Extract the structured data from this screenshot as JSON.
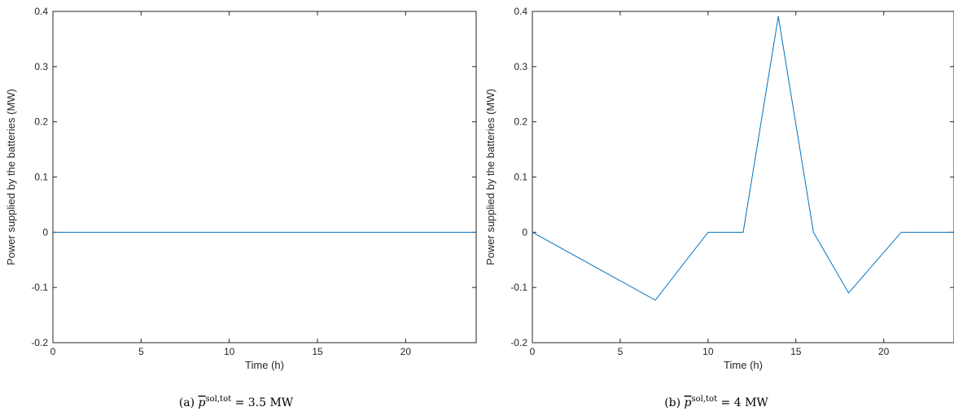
{
  "chart_data": [
    {
      "type": "line",
      "caption": "(a) p̅sol,tot = 3.5 MW",
      "xlabel": "Time (h)",
      "ylabel": "Power supplied by the batteries (MW)",
      "xlim": [
        0,
        24
      ],
      "ylim": [
        -0.2,
        0.4
      ],
      "xticks": [
        0,
        5,
        10,
        15,
        20
      ],
      "yticks": [
        -0.2,
        -0.1,
        0,
        0.1,
        0.2,
        0.3,
        0.4
      ],
      "xtick_labels": [
        "0",
        "5",
        "10",
        "15",
        "20"
      ],
      "ytick_labels": [
        "-0.2",
        "-0.1",
        "0",
        "0.1",
        "0.2",
        "0.3",
        "0.4"
      ],
      "grid": false,
      "series": [
        {
          "color": "#0072BD",
          "x": [
            0,
            24
          ],
          "y": [
            0,
            0
          ]
        }
      ]
    },
    {
      "type": "line",
      "caption": "(b) p̅sol,tot = 4 MW",
      "xlabel": "Time (h)",
      "ylabel": "Power supplied by the batteries (MW)",
      "xlim": [
        0,
        24
      ],
      "ylim": [
        -0.2,
        0.4
      ],
      "xticks": [
        0,
        5,
        10,
        15,
        20
      ],
      "yticks": [
        -0.2,
        -0.1,
        0,
        0.1,
        0.2,
        0.3,
        0.4
      ],
      "xtick_labels": [
        "0",
        "5",
        "10",
        "15",
        "20"
      ],
      "ytick_labels": [
        "-0.2",
        "-0.1",
        "0",
        "0.1",
        "0.2",
        "0.3",
        "0.4"
      ],
      "grid": false,
      "series": [
        {
          "color": "#0072BD",
          "x": [
            0,
            7,
            10,
            12,
            14,
            16,
            18,
            21,
            24
          ],
          "y": [
            0,
            -0.123,
            0,
            0,
            0.391,
            0,
            -0.11,
            0,
            0
          ]
        }
      ]
    }
  ],
  "captions": [
    {
      "prefix": "(a)",
      "symbol": "p",
      "superscript": "sol,tot",
      "value": "= 3.5 MW"
    },
    {
      "prefix": "(b)",
      "symbol": "p",
      "superscript": "sol,tot",
      "value": "= 4 MW"
    }
  ]
}
